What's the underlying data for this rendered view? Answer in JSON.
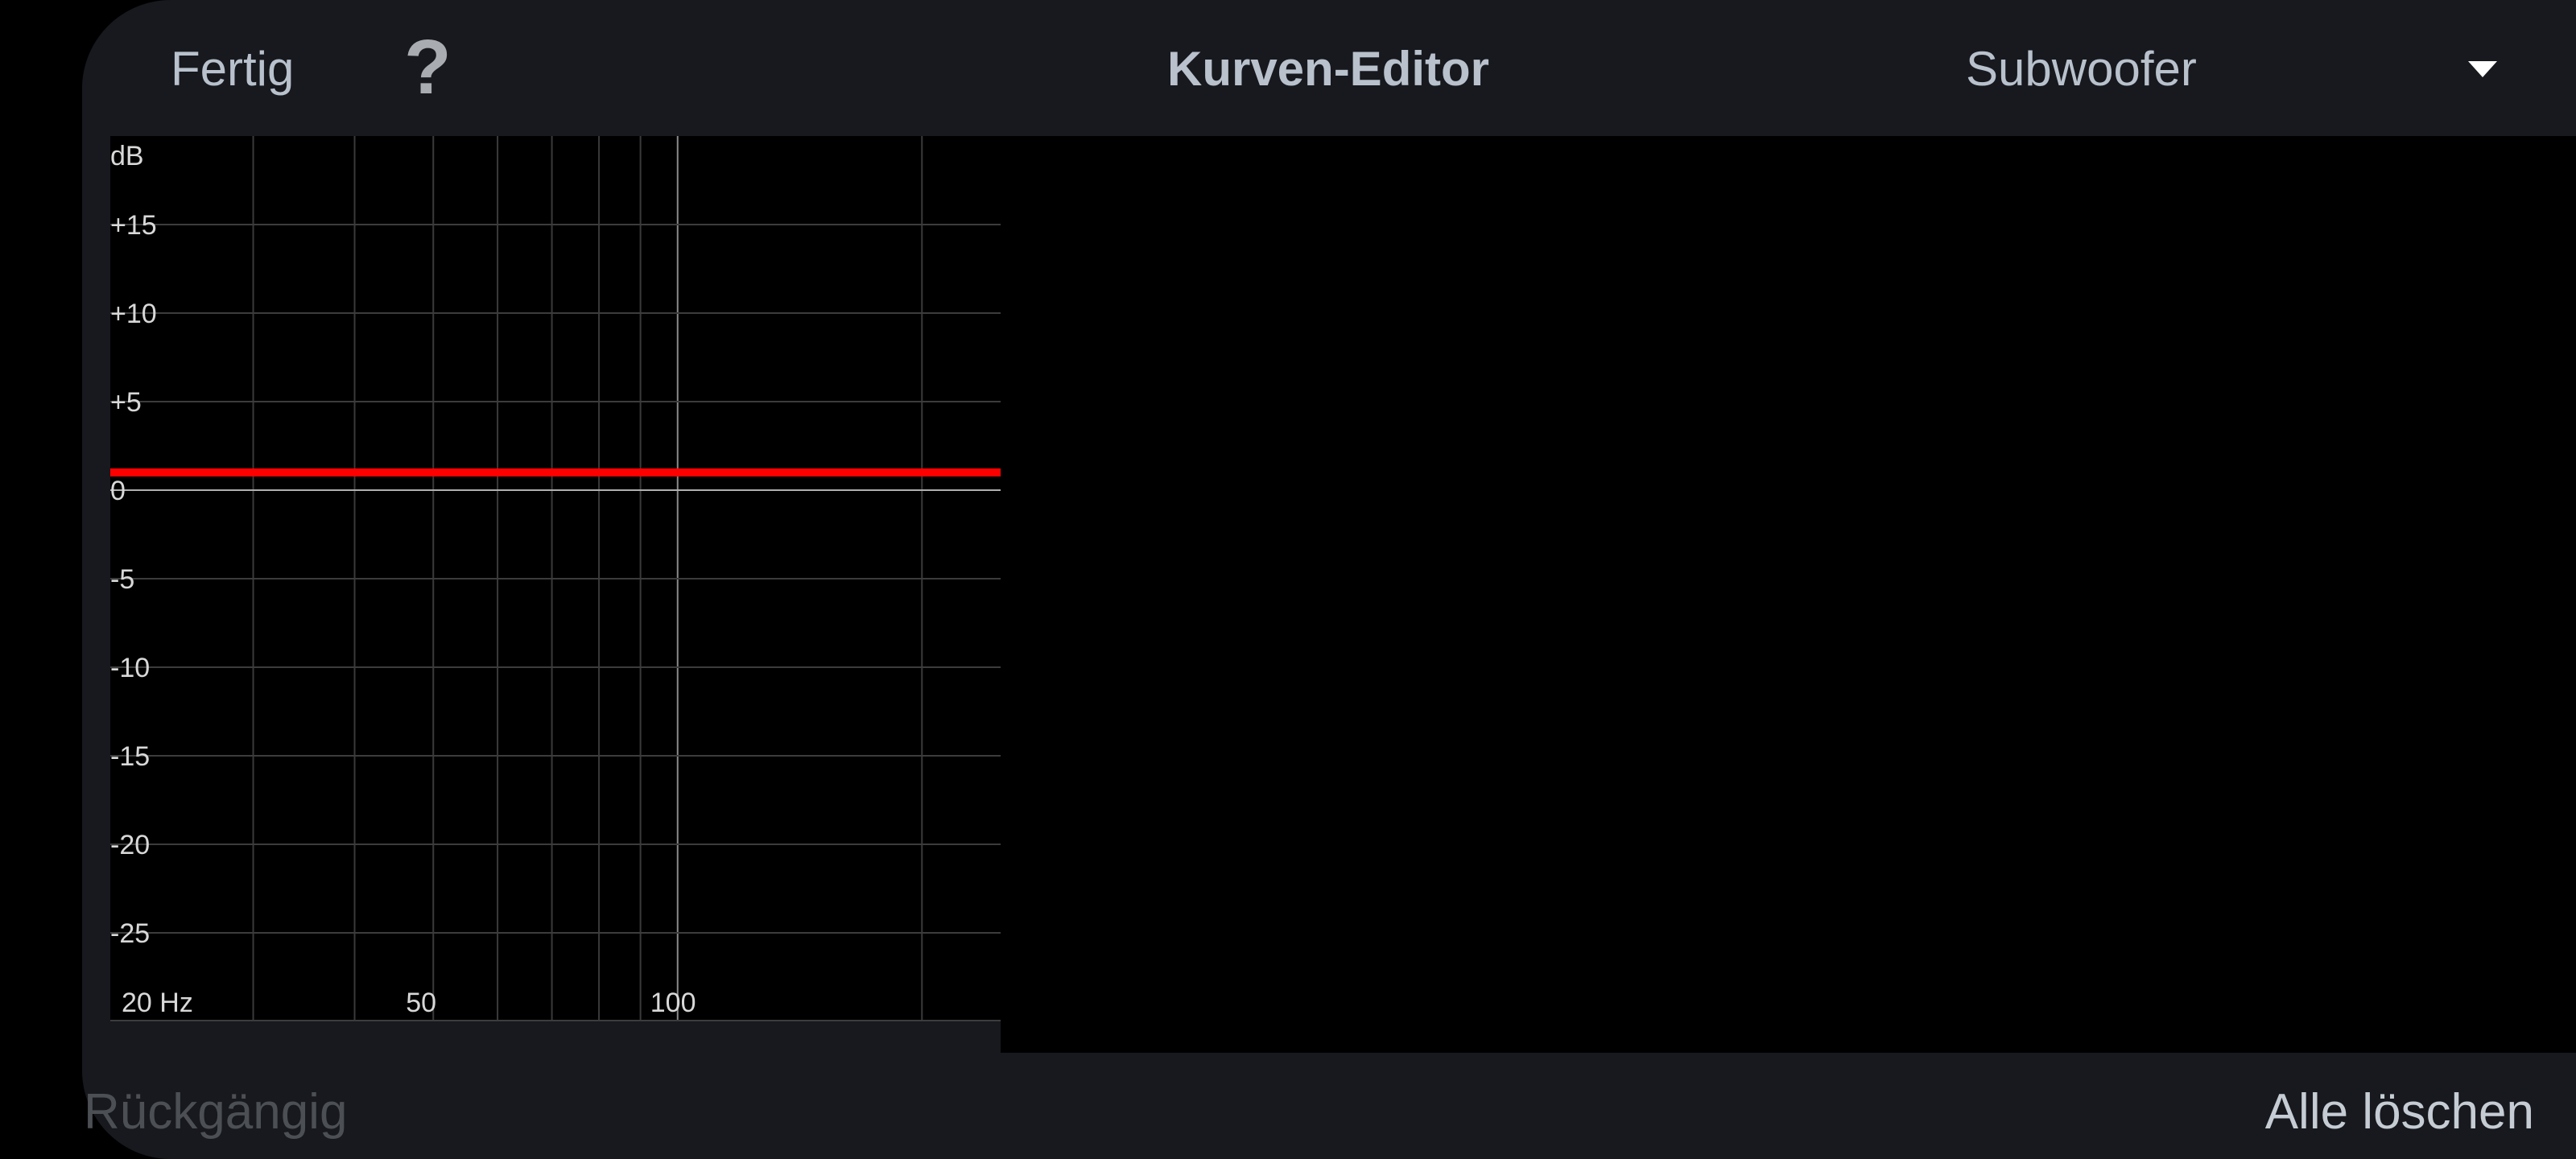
{
  "header": {
    "done_label": "Fertig",
    "help_label": "?",
    "title": "Kurven-Editor",
    "channel_selected": "Subwoofer",
    "dropdown_icon": "triangle-down-icon"
  },
  "footer": {
    "undo_label": "Rückgängig",
    "clear_all_label": "Alle löschen"
  },
  "colors": {
    "background": "#17191e",
    "text": "#b8c1cc",
    "curve": "#ff0000",
    "grid": "#3c3c3c",
    "disabled_text": "#4c4f54"
  },
  "chart_data": {
    "type": "line",
    "ylabel": "dB",
    "xscale": "log",
    "xlim": [
      20,
      250
    ],
    "ylim": [
      -30,
      20
    ],
    "y_ticks": [
      15,
      10,
      5,
      0,
      -5,
      -10,
      -15,
      -20,
      -25
    ],
    "y_tick_labels": [
      "+15",
      "+10",
      "+5",
      "0",
      "-5",
      "-10",
      "-15",
      "-20",
      "-25"
    ],
    "x_gridlines": [
      30,
      40,
      50,
      60,
      70,
      80,
      90,
      100,
      200
    ],
    "x_tick_labels": [
      {
        "value": 20,
        "label": "20 Hz"
      },
      {
        "value": 50,
        "label": "50"
      },
      {
        "value": 100,
        "label": "100"
      }
    ],
    "grid": true,
    "series": [
      {
        "x": [
          20,
          250
        ],
        "y": [
          1,
          1
        ],
        "color": "#ff0000"
      }
    ]
  }
}
